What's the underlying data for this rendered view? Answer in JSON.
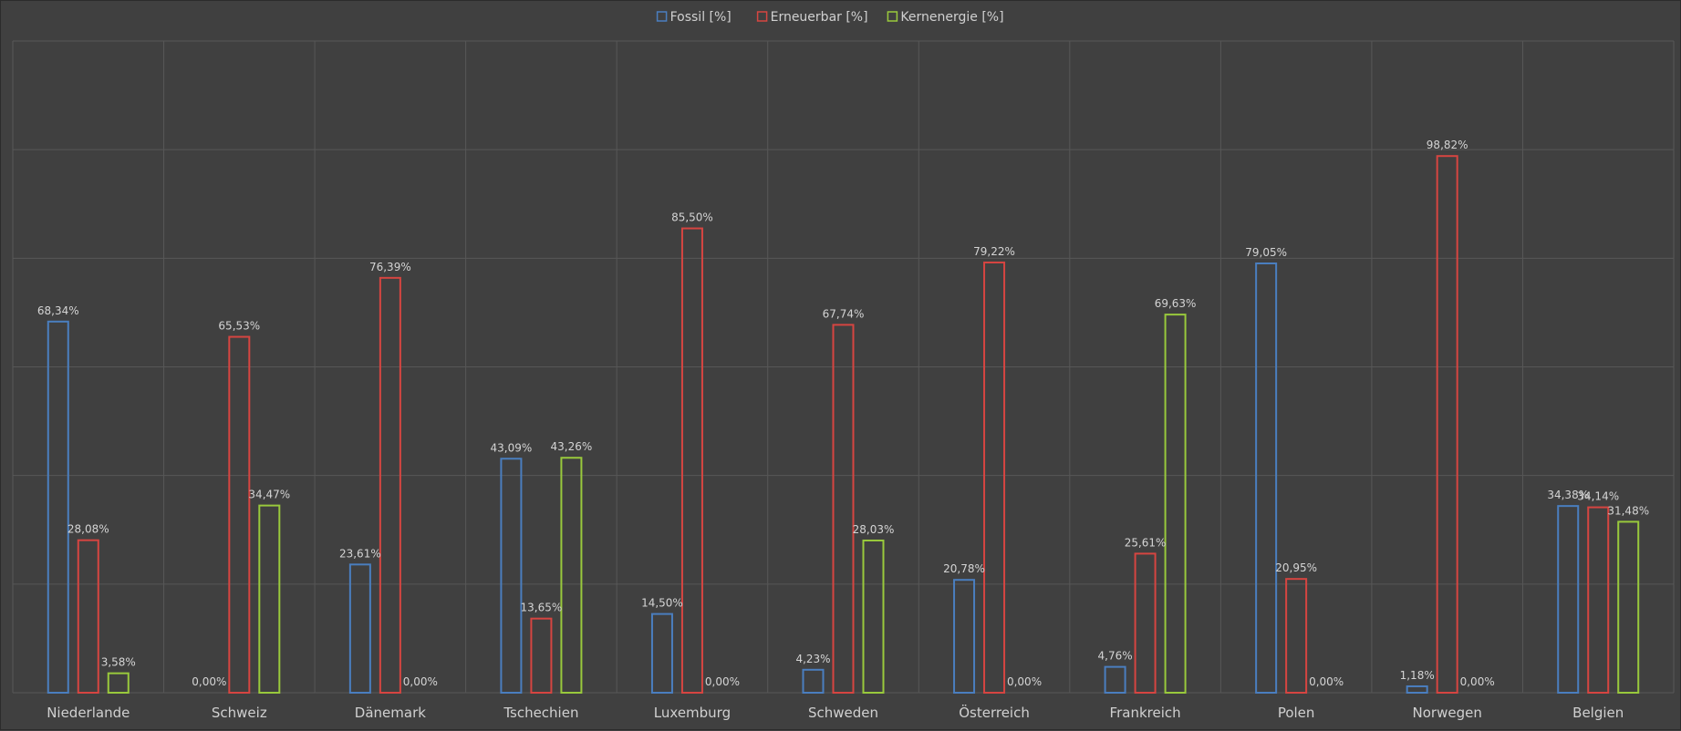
{
  "chart_data": {
    "type": "bar",
    "categories": [
      "Niederlande",
      "Schweiz",
      "Dänemark",
      "Tschechien",
      "Luxemburg",
      "Schweden",
      "Österreich",
      "Frankreich",
      "Polen",
      "Norwegen",
      "Belgien"
    ],
    "series": [
      {
        "name": "Fossil [%]",
        "color": "#4a7ebf",
        "values": [
          68.34,
          0.0,
          23.61,
          43.09,
          14.5,
          4.23,
          20.78,
          4.76,
          79.05,
          1.18,
          34.38
        ],
        "labels": [
          "68,34%",
          "0,00%",
          "23,61%",
          "43,09%",
          "14,50%",
          "4,23%",
          "20,78%",
          "4,76%",
          "79,05%",
          "1,18%",
          "34,38%"
        ]
      },
      {
        "name": "Erneuerbar [%]",
        "color": "#d64541",
        "values": [
          28.08,
          65.53,
          76.39,
          13.65,
          85.5,
          67.74,
          79.22,
          25.61,
          20.95,
          98.82,
          34.14
        ],
        "labels": [
          "28,08%",
          "65,53%",
          "76,39%",
          "13,65%",
          "85,50%",
          "67,74%",
          "79,22%",
          "25,61%",
          "20,95%",
          "98,82%",
          "34,14%"
        ]
      },
      {
        "name": "Kernenergie [%]",
        "color": "#99c93c",
        "values": [
          3.58,
          34.47,
          0.0,
          43.26,
          0.0,
          28.03,
          0.0,
          69.63,
          0.0,
          0.0,
          31.48
        ],
        "labels": [
          "3,58%",
          "34,47%",
          "0,00%",
          "43,26%",
          "0,00%",
          "28,03%",
          "0,00%",
          "69,63%",
          "0,00%",
          "0,00%",
          "31,48%"
        ]
      }
    ],
    "ylim": [
      0,
      120
    ],
    "grid": true,
    "legend_position": "top-center",
    "title": "",
    "xlabel": "",
    "ylabel": ""
  }
}
